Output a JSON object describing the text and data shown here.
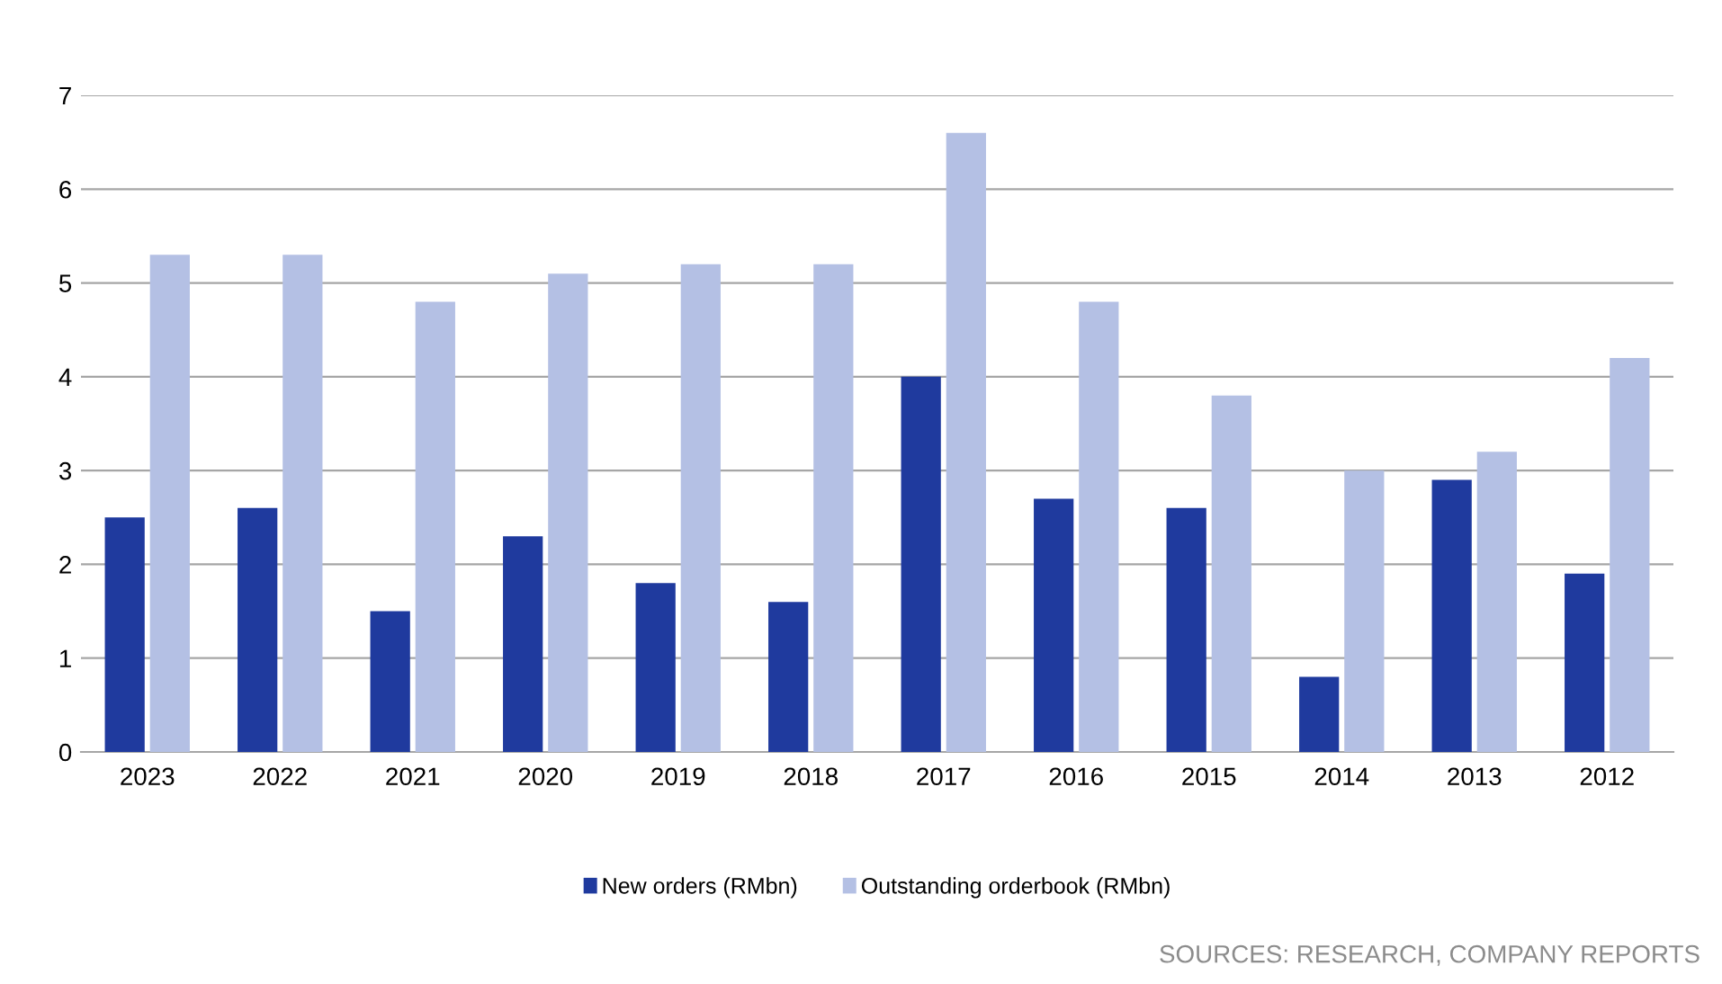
{
  "chart_data": {
    "type": "bar",
    "categories": [
      "2023",
      "2022",
      "2021",
      "2020",
      "2019",
      "2018",
      "2017",
      "2016",
      "2015",
      "2014",
      "2013",
      "2012"
    ],
    "series": [
      {
        "name": "New orders (RMbn)",
        "color": "#1f3a9e",
        "values": [
          2.5,
          2.6,
          1.5,
          2.3,
          1.8,
          1.6,
          4.0,
          2.7,
          2.6,
          0.8,
          2.9,
          1.9
        ]
      },
      {
        "name": "Outstanding orderbook (RMbn)",
        "color": "#b4c0e4",
        "values": [
          5.3,
          5.3,
          4.8,
          5.1,
          5.2,
          5.2,
          6.6,
          4.8,
          3.8,
          3.0,
          3.2,
          4.2
        ]
      }
    ],
    "ylim": [
      0,
      7
    ],
    "yticks": [
      0,
      1,
      2,
      3,
      4,
      5,
      6,
      7
    ],
    "grid": "y",
    "legend": "bottom",
    "annotations": [
      "SOURCES: RESEARCH, COMPANY REPORTS"
    ]
  }
}
